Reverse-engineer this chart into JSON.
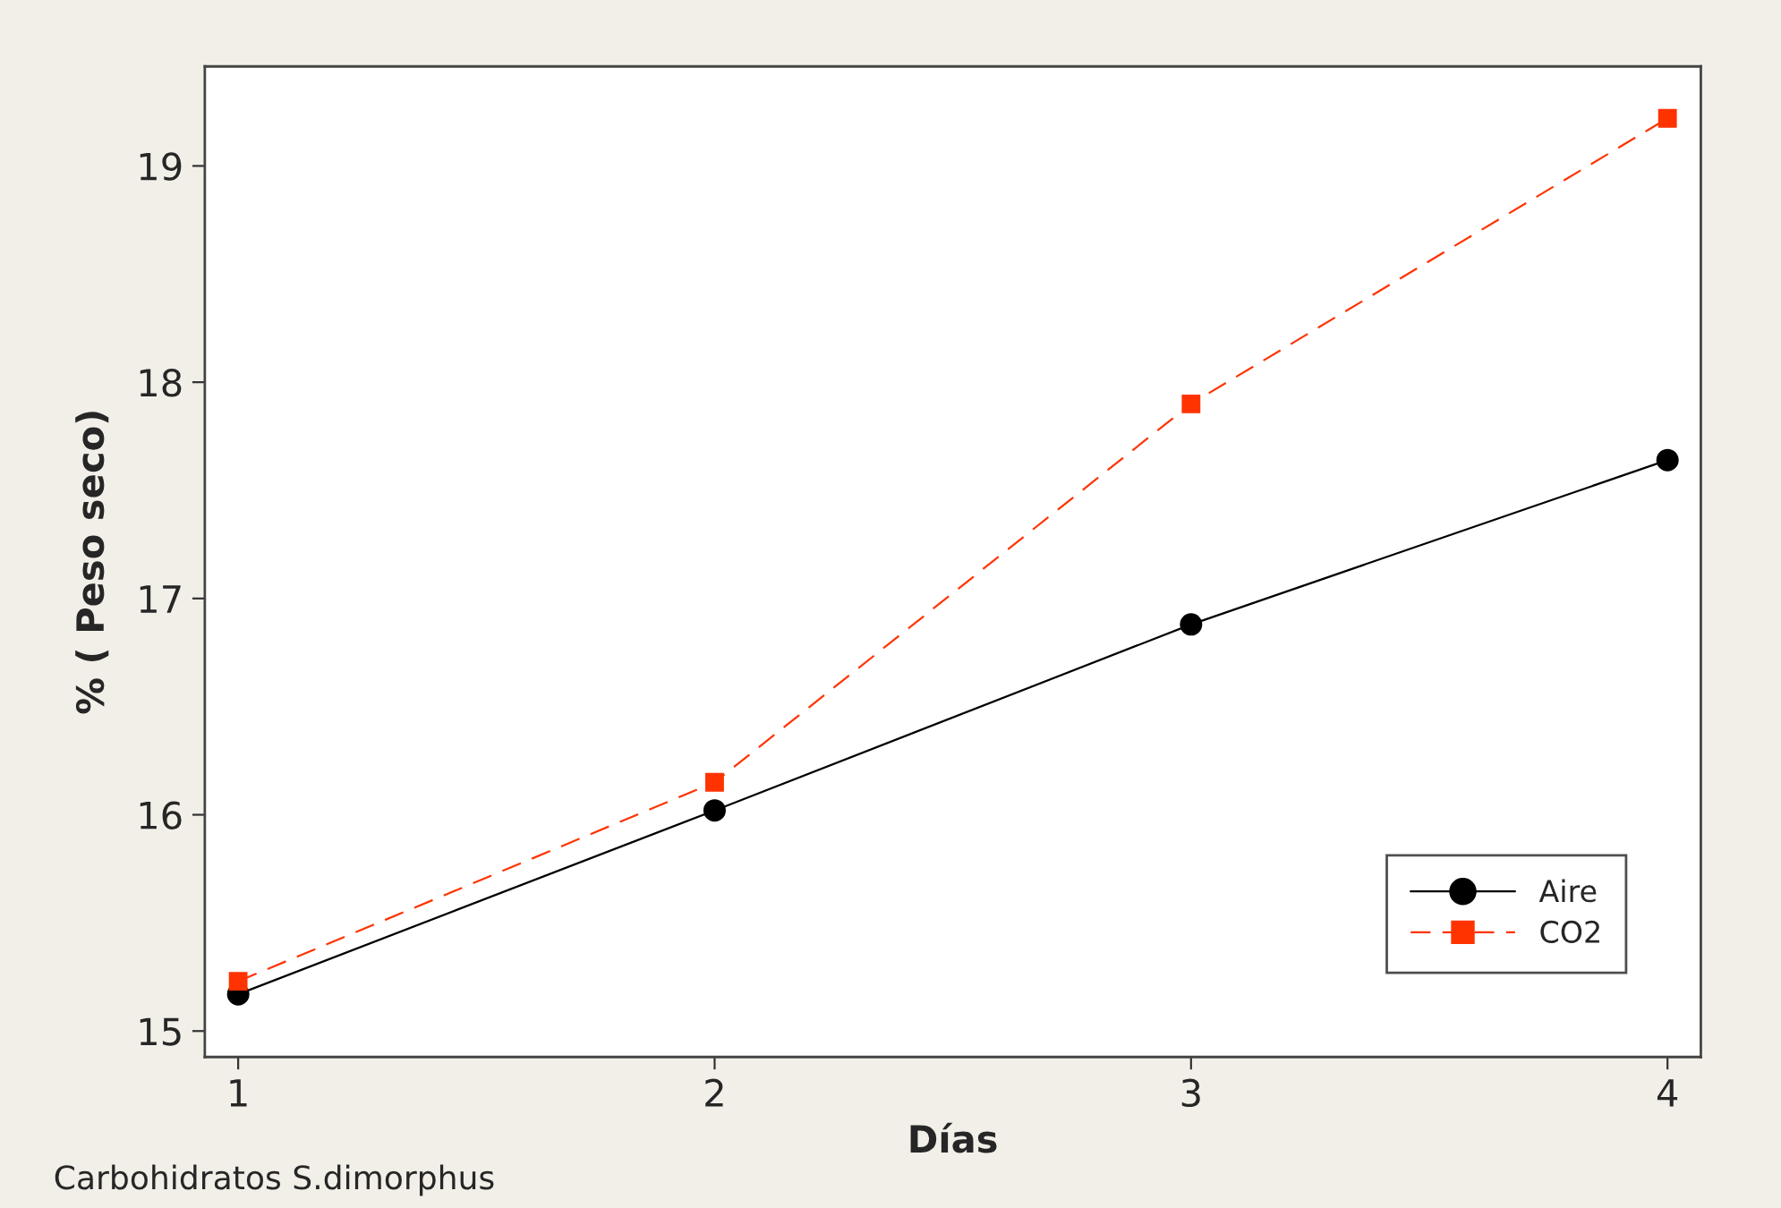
{
  "chart_data": {
    "type": "line",
    "xlabel": "Días",
    "ylabel": "% ( Peso seco)",
    "x": [
      1,
      2,
      3,
      4
    ],
    "series": [
      {
        "name": "Aire",
        "color": "#000000",
        "values": [
          15.17,
          16.02,
          16.88,
          17.64
        ],
        "marker": "circle",
        "line_style": "solid"
      },
      {
        "name": "CO2",
        "color": "#ff3300",
        "values": [
          15.23,
          16.15,
          17.9,
          19.22
        ],
        "marker": "square",
        "line_style": "dashed"
      }
    ],
    "xlim": [
      0.93,
      4.07
    ],
    "xticks": [
      1,
      2,
      3,
      4
    ],
    "ylim": [
      14.88,
      19.46
    ],
    "yticks": [
      15,
      16,
      17,
      18,
      19
    ],
    "grid": false,
    "legend": "bottom right",
    "annotations": [
      "Carbohidratos S.dimorphus"
    ]
  }
}
